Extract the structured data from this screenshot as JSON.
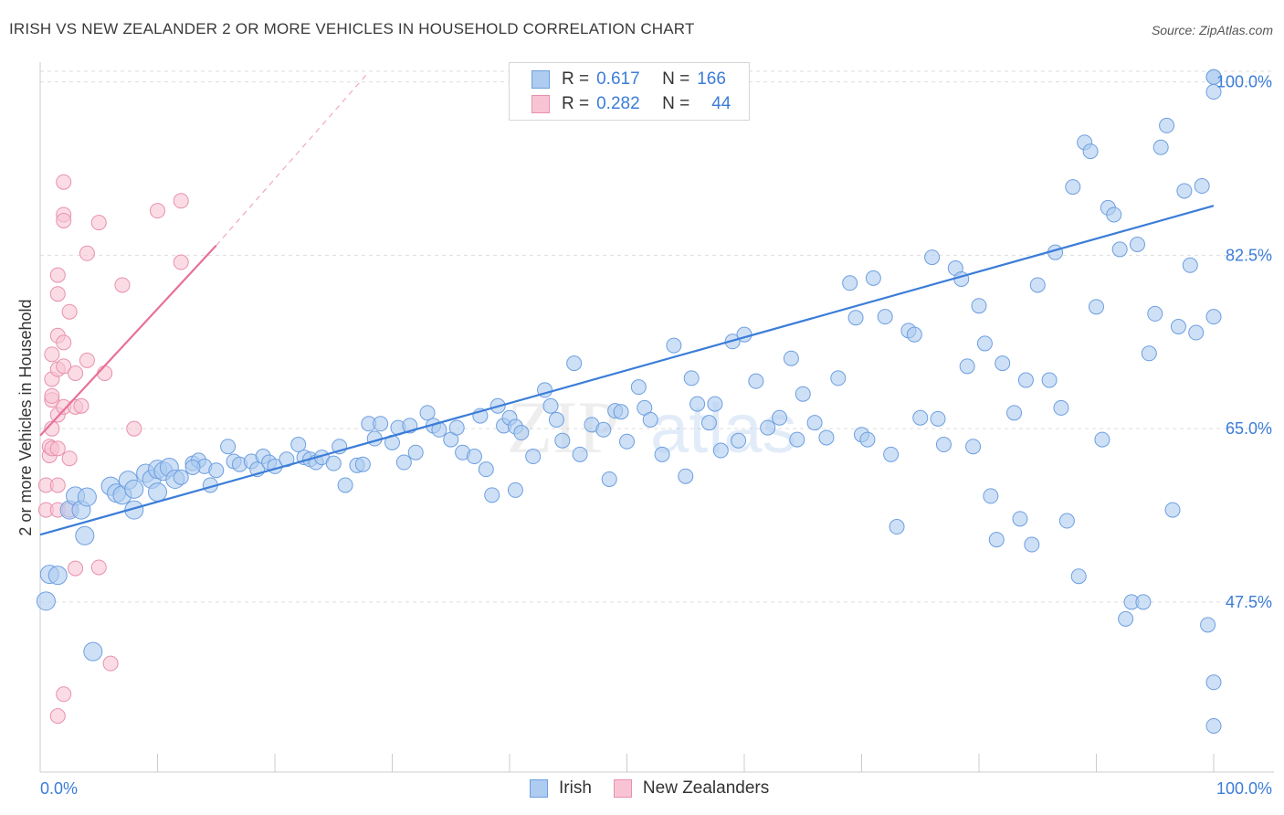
{
  "title": "IRISH VS NEW ZEALANDER 2 OR MORE VEHICLES IN HOUSEHOLD CORRELATION CHART",
  "source": "Source: ZipAtlas.com",
  "watermark": {
    "zip": "ZIP",
    "atlas": "atlas"
  },
  "legend": {
    "rows": [
      {
        "r_label": "R =",
        "r_value": "0.617",
        "n_label": "N =",
        "n_value": "166",
        "fill": "#aecbf0",
        "border": "#6d9fe0"
      },
      {
        "r_label": "R =",
        "r_value": "0.282",
        "n_label": "N =",
        "n_value": "44",
        "fill": "#f8c4d4",
        "border": "#e890ae"
      }
    ]
  },
  "bottom_legend": [
    {
      "label": "Irish",
      "fill": "#aecbf0",
      "border": "#6d9fe0"
    },
    {
      "label": "New Zealanders",
      "fill": "#f8c4d4",
      "border": "#e890ae"
    }
  ],
  "chart_data": {
    "type": "scatter",
    "xlabel": "",
    "ylabel": "2 or more Vehicles in Household",
    "xlim": [
      0,
      100
    ],
    "ylim": [
      32,
      102
    ],
    "x_tick_labels": [
      "0.0%",
      "100.0%"
    ],
    "y_ticks": [
      47.5,
      65.0,
      82.5,
      100.0
    ],
    "y_tick_labels": [
      "47.5%",
      "65.0%",
      "82.5%",
      "100.0%"
    ],
    "grid": true,
    "colors": {
      "irish": "#3b7dd8",
      "irish_fill": "#aecbf0",
      "nz": "#e8709a",
      "nz_fill": "#f8c4d4",
      "axis_text": "#3b7dd8"
    },
    "series": [
      {
        "name": "Irish",
        "trend": {
          "x": [
            0,
            100
          ],
          "y": [
            54.3,
            87.5
          ]
        },
        "points": [
          [
            0.5,
            47.6
          ],
          [
            0.8,
            50.3
          ],
          [
            1.5,
            50.2
          ],
          [
            2.5,
            56.8
          ],
          [
            3,
            58.2
          ],
          [
            3.5,
            56.8
          ],
          [
            4,
            58.1
          ],
          [
            3.8,
            54.2
          ],
          [
            4.5,
            42.5
          ],
          [
            6,
            59.2
          ],
          [
            6.5,
            58.5
          ],
          [
            7,
            58.3
          ],
          [
            7.5,
            59.8
          ],
          [
            8,
            58.9
          ],
          [
            8,
            56.8
          ],
          [
            9,
            60.5
          ],
          [
            9.5,
            59.9
          ],
          [
            10,
            60.9
          ],
          [
            10.5,
            60.7
          ],
          [
            11,
            61.1
          ],
          [
            10,
            58.6
          ],
          [
            11.5,
            59.9
          ],
          [
            12,
            60.1
          ],
          [
            13,
            61.5
          ],
          [
            13.5,
            61.8
          ],
          [
            14,
            61.2
          ],
          [
            13,
            61.1
          ],
          [
            14.5,
            59.3
          ],
          [
            15,
            60.8
          ],
          [
            16,
            63.2
          ],
          [
            16.5,
            61.7
          ],
          [
            17,
            61.4
          ],
          [
            18,
            61.7
          ],
          [
            18.5,
            60.9
          ],
          [
            19,
            62.2
          ],
          [
            19.5,
            61.6
          ],
          [
            20,
            61.2
          ],
          [
            21,
            61.9
          ],
          [
            22,
            63.4
          ],
          [
            22.5,
            62.1
          ],
          [
            23,
            61.9
          ],
          [
            23.5,
            61.6
          ],
          [
            24,
            62.1
          ],
          [
            25,
            61.5
          ],
          [
            25.5,
            63.2
          ],
          [
            26,
            59.3
          ],
          [
            27,
            61.3
          ],
          [
            27.5,
            61.4
          ],
          [
            28,
            65.5
          ],
          [
            28.5,
            64.0
          ],
          [
            29,
            65.5
          ],
          [
            30,
            63.6
          ],
          [
            30.5,
            65.1
          ],
          [
            31,
            61.6
          ],
          [
            31.5,
            65.3
          ],
          [
            32,
            62.6
          ],
          [
            33,
            66.6
          ],
          [
            33.5,
            65.3
          ],
          [
            34,
            64.9
          ],
          [
            35,
            63.9
          ],
          [
            35.5,
            65.1
          ],
          [
            36,
            62.6
          ],
          [
            37,
            62.2
          ],
          [
            37.5,
            66.3
          ],
          [
            38,
            60.9
          ],
          [
            38.5,
            58.3
          ],
          [
            39,
            67.3
          ],
          [
            39.5,
            65.3
          ],
          [
            40,
            66.1
          ],
          [
            40.5,
            58.8
          ],
          [
            40.5,
            65.2
          ],
          [
            41,
            64.6
          ],
          [
            42,
            62.2
          ],
          [
            43,
            68.9
          ],
          [
            43.5,
            67.3
          ],
          [
            44,
            65.9
          ],
          [
            44.5,
            63.8
          ],
          [
            45.5,
            71.6
          ],
          [
            46,
            62.4
          ],
          [
            47,
            65.4
          ],
          [
            48,
            64.9
          ],
          [
            48.5,
            59.9
          ],
          [
            49,
            66.8
          ],
          [
            49.5,
            66.7
          ],
          [
            50,
            63.7
          ],
          [
            51,
            69.2
          ],
          [
            51.5,
            67.1
          ],
          [
            52,
            65.9
          ],
          [
            53,
            62.4
          ],
          [
            54,
            73.4
          ],
          [
            55,
            60.2
          ],
          [
            55.5,
            70.1
          ],
          [
            56,
            67.5
          ],
          [
            57,
            65.6
          ],
          [
            57.5,
            67.5
          ],
          [
            58,
            62.8
          ],
          [
            59,
            73.8
          ],
          [
            59.5,
            63.8
          ],
          [
            60,
            74.5
          ],
          [
            61,
            69.8
          ],
          [
            62,
            65.1
          ],
          [
            63,
            66.1
          ],
          [
            64,
            72.1
          ],
          [
            64.5,
            63.9
          ],
          [
            65,
            68.5
          ],
          [
            66,
            65.6
          ],
          [
            67,
            64.1
          ],
          [
            68,
            70.1
          ],
          [
            69,
            79.7
          ],
          [
            69.5,
            76.2
          ],
          [
            70,
            64.4
          ],
          [
            70.5,
            63.9
          ],
          [
            71,
            80.2
          ],
          [
            72,
            76.3
          ],
          [
            72.5,
            62.4
          ],
          [
            73,
            55.1
          ],
          [
            74,
            74.9
          ],
          [
            74.5,
            74.5
          ],
          [
            75,
            66.1
          ],
          [
            76,
            82.3
          ],
          [
            76.5,
            66.0
          ],
          [
            77,
            63.4
          ],
          [
            78,
            81.2
          ],
          [
            78.5,
            80.1
          ],
          [
            79,
            71.3
          ],
          [
            79.5,
            63.2
          ],
          [
            80,
            77.4
          ],
          [
            80.5,
            73.6
          ],
          [
            81,
            58.2
          ],
          [
            81.5,
            53.8
          ],
          [
            82,
            71.6
          ],
          [
            83,
            66.6
          ],
          [
            83.5,
            55.9
          ],
          [
            84,
            69.9
          ],
          [
            84.5,
            53.3
          ],
          [
            85,
            79.5
          ],
          [
            86,
            69.9
          ],
          [
            86.5,
            82.8
          ],
          [
            87,
            67.1
          ],
          [
            87.5,
            55.7
          ],
          [
            88,
            89.4
          ],
          [
            88.5,
            50.1
          ],
          [
            89,
            93.9
          ],
          [
            89.5,
            93.0
          ],
          [
            90,
            77.3
          ],
          [
            90.5,
            63.9
          ],
          [
            91,
            87.3
          ],
          [
            91.5,
            86.6
          ],
          [
            92,
            83.1
          ],
          [
            92.5,
            45.8
          ],
          [
            93,
            47.5
          ],
          [
            93.5,
            83.6
          ],
          [
            94,
            47.5
          ],
          [
            94.5,
            72.6
          ],
          [
            95,
            76.6
          ],
          [
            95.5,
            93.4
          ],
          [
            96,
            95.6
          ],
          [
            96.5,
            56.8
          ],
          [
            97,
            75.3
          ],
          [
            97.5,
            89.0
          ],
          [
            98,
            81.5
          ],
          [
            98.5,
            74.7
          ],
          [
            99,
            89.5
          ],
          [
            99.5,
            45.2
          ],
          [
            100,
            76.3
          ],
          [
            100,
            100.5
          ],
          [
            100,
            39.4
          ],
          [
            100,
            99.0
          ],
          [
            100,
            35.0
          ],
          [
            100,
            100.5
          ]
        ]
      },
      {
        "name": "New Zealanders",
        "trend": {
          "x": [
            0,
            15
          ],
          "y": [
            64.3,
            83.5
          ]
        },
        "trend_extension": {
          "x": [
            15,
            28
          ],
          "y": [
            83.5,
            101
          ]
        },
        "points": [
          [
            0.5,
            56.8
          ],
          [
            0.5,
            59.3
          ],
          [
            0.8,
            62.3
          ],
          [
            0.8,
            63.2
          ],
          [
            1,
            65.0
          ],
          [
            1,
            67.9
          ],
          [
            1,
            68.3
          ],
          [
            1,
            70.0
          ],
          [
            1,
            72.5
          ],
          [
            1,
            63.0
          ],
          [
            1.5,
            74.4
          ],
          [
            1.5,
            71.0
          ],
          [
            1.5,
            66.4
          ],
          [
            1.5,
            59.3
          ],
          [
            1.5,
            63.0
          ],
          [
            1.5,
            56.8
          ],
          [
            1.5,
            36.0
          ],
          [
            1.5,
            78.6
          ],
          [
            1.5,
            80.5
          ],
          [
            2,
            71.3
          ],
          [
            2,
            73.7
          ],
          [
            2,
            89.9
          ],
          [
            2,
            86.6
          ],
          [
            2,
            86.0
          ],
          [
            2,
            67.2
          ],
          [
            2,
            38.2
          ],
          [
            2.5,
            62.0
          ],
          [
            2.5,
            76.8
          ],
          [
            2.5,
            56.8
          ],
          [
            3,
            70.6
          ],
          [
            3,
            67.2
          ],
          [
            3,
            50.9
          ],
          [
            3.5,
            67.3
          ],
          [
            4,
            82.7
          ],
          [
            4,
            71.9
          ],
          [
            5,
            85.8
          ],
          [
            5,
            51.0
          ],
          [
            5.5,
            70.6
          ],
          [
            6,
            41.3
          ],
          [
            7,
            79.5
          ],
          [
            8,
            65.0
          ],
          [
            10,
            87.0
          ],
          [
            12,
            88.0
          ],
          [
            12,
            81.8
          ]
        ]
      }
    ]
  }
}
